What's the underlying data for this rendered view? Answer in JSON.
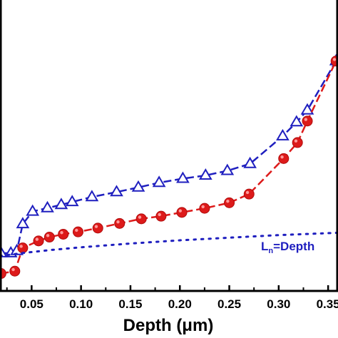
{
  "chart_data": {
    "type": "line",
    "title": "",
    "xlabel": "Depth (μm)",
    "ylabel": "",
    "xlim": [
      0.018,
      0.36
    ],
    "ylim": [
      0,
      1
    ],
    "x_ticks": [
      "0.05",
      "0.10",
      "0.15",
      "0.20",
      "0.25",
      "0.30",
      "0.35"
    ],
    "x_tick_values": [
      0.05,
      0.1,
      0.15,
      0.2,
      0.25,
      0.3,
      0.35
    ],
    "grid": false,
    "legend": "none",
    "annotation": {
      "text_main": "L",
      "text_sub": "n",
      "text_rest": "=Depth",
      "color": "#1f1fbf",
      "placement": "right, near dotted line"
    },
    "series": [
      {
        "marker": "triangle-open",
        "color": "#1f1fbf",
        "line": "dashed",
        "x": [
          0.019,
          0.029,
          0.035,
          0.041,
          0.051,
          0.066,
          0.08,
          0.091,
          0.111,
          0.136,
          0.158,
          0.179,
          0.203,
          0.226,
          0.248,
          0.271,
          0.304,
          0.318,
          0.329,
          0.358
        ],
        "y": [
          0.13,
          0.13,
          0.138,
          0.23,
          0.273,
          0.285,
          0.296,
          0.306,
          0.323,
          0.34,
          0.356,
          0.372,
          0.386,
          0.397,
          0.413,
          0.437,
          0.532,
          0.58,
          0.621,
          0.79
        ]
      },
      {
        "marker": "circle-filled",
        "color": "#dd1a1a",
        "line": "dashed",
        "x": [
          0.019,
          0.033,
          0.041,
          0.057,
          0.068,
          0.082,
          0.097,
          0.117,
          0.139,
          0.161,
          0.181,
          0.202,
          0.225,
          0.25,
          0.27,
          0.305,
          0.319,
          0.329,
          0.358
        ],
        "y": [
          0.06,
          0.068,
          0.148,
          0.172,
          0.185,
          0.195,
          0.203,
          0.216,
          0.232,
          0.248,
          0.257,
          0.27,
          0.284,
          0.303,
          0.333,
          0.455,
          0.51,
          0.584,
          0.79
        ]
      },
      {
        "marker": "none",
        "color": "#1f1fbf",
        "line": "dotted",
        "x": [
          0.018,
          0.04,
          0.07,
          0.1,
          0.15,
          0.2,
          0.25,
          0.3,
          0.36
        ],
        "y": [
          0.12,
          0.13,
          0.141,
          0.15,
          0.163,
          0.174,
          0.183,
          0.192,
          0.2
        ]
      }
    ]
  }
}
